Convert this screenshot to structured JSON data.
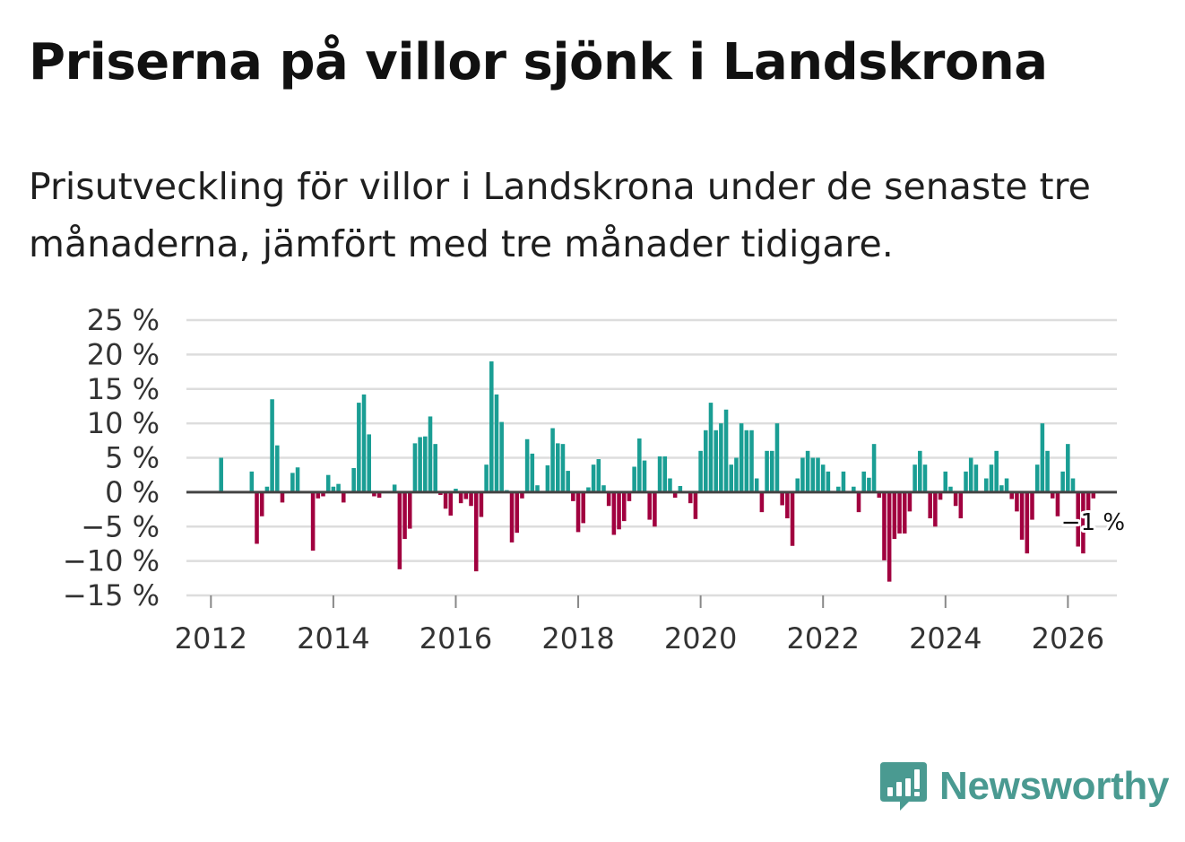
{
  "title": "Priserna på villor sjönk i Landskrona",
  "subtitle": "Prisutveckling för villor i Landskrona under de senaste tre månaderna, jämfört med tre månader tidigare.",
  "brand": {
    "name": "Newsworthy",
    "color": "#4a9a91"
  },
  "colors": {
    "positive": "#1a9e94",
    "negative": "#a1003f",
    "grid": "#dddddd",
    "zero_line": "#444444"
  },
  "chart_data": {
    "type": "bar",
    "title": "Priserna på villor sjönk i Landskrona",
    "xlabel": "",
    "ylabel": "",
    "ylim": [
      -15,
      25
    ],
    "xlim": [
      2011.6,
      2026.8
    ],
    "y_ticks": [
      25,
      20,
      15,
      10,
      5,
      0,
      -5,
      -10,
      -15
    ],
    "y_tick_labels": [
      "25 %",
      "20 %",
      "15 %",
      "10 %",
      "5 %",
      "0 %",
      "−5 %",
      "−10 %",
      "−15 %"
    ],
    "x_ticks": [
      2012,
      2014,
      2016,
      2018,
      2020,
      2022,
      2024,
      2026
    ],
    "x_tick_labels": [
      "2012",
      "2014",
      "2016",
      "2018",
      "2020",
      "2022",
      "2024",
      "2026"
    ],
    "x_start": 2012.0,
    "step": 0.08333,
    "annotation": "−1 %",
    "values": [
      null,
      null,
      5,
      null,
      null,
      null,
      null,
      null,
      3,
      -7.5,
      -3.5,
      0.8,
      13.5,
      6.8,
      -1.5,
      null,
      2.8,
      3.6,
      null,
      null,
      -8.5,
      -0.9,
      -0.6,
      2.5,
      0.8,
      1.2,
      -1.5,
      null,
      3.5,
      13,
      14.2,
      8.4,
      -0.6,
      -0.8,
      null,
      null,
      1.1,
      -11.2,
      -6.8,
      -5.3,
      7.1,
      8,
      8.1,
      11,
      7,
      -0.4,
      -2.4,
      -3.4,
      0.5,
      -1.6,
      -1,
      -2,
      -11.5,
      -3.6,
      4,
      19,
      14.2,
      10.2,
      0.3,
      -7.3,
      -5.9,
      -0.9,
      7.7,
      5.6,
      1,
      null,
      3.9,
      9.3,
      7.1,
      7,
      3.1,
      -1.3,
      -5.8,
      -4.5,
      0.7,
      4,
      4.8,
      1,
      -2,
      -6.2,
      -5.4,
      -4.2,
      -1.3,
      3.7,
      7.8,
      4.6,
      -4,
      -5,
      5.2,
      5.2,
      2,
      -0.8,
      0.9,
      null,
      -1.6,
      -3.9,
      6,
      9,
      13,
      9,
      10,
      12,
      4,
      5,
      10,
      9,
      9,
      2,
      -2.9,
      6,
      6,
      10,
      -1.9,
      -3.8,
      -7.8,
      2,
      5,
      6,
      5,
      5,
      4,
      3,
      null,
      0.8,
      3,
      null,
      0.8,
      -2.9,
      3,
      2.1,
      7,
      -0.8,
      -9.9,
      -13,
      -6.8,
      -6,
      -6,
      -2.8,
      4,
      6,
      4,
      -3.8,
      -5,
      -1.1,
      3,
      0.8,
      -2,
      -3.8,
      3,
      5,
      4,
      null,
      2,
      4,
      6,
      1,
      2,
      -1,
      -2.8,
      -6.9,
      -8.9,
      -4,
      4,
      10,
      6,
      -0.9,
      -3.5,
      3,
      7,
      2,
      -7.9,
      -8.9,
      -2.8,
      -0.9
    ]
  }
}
